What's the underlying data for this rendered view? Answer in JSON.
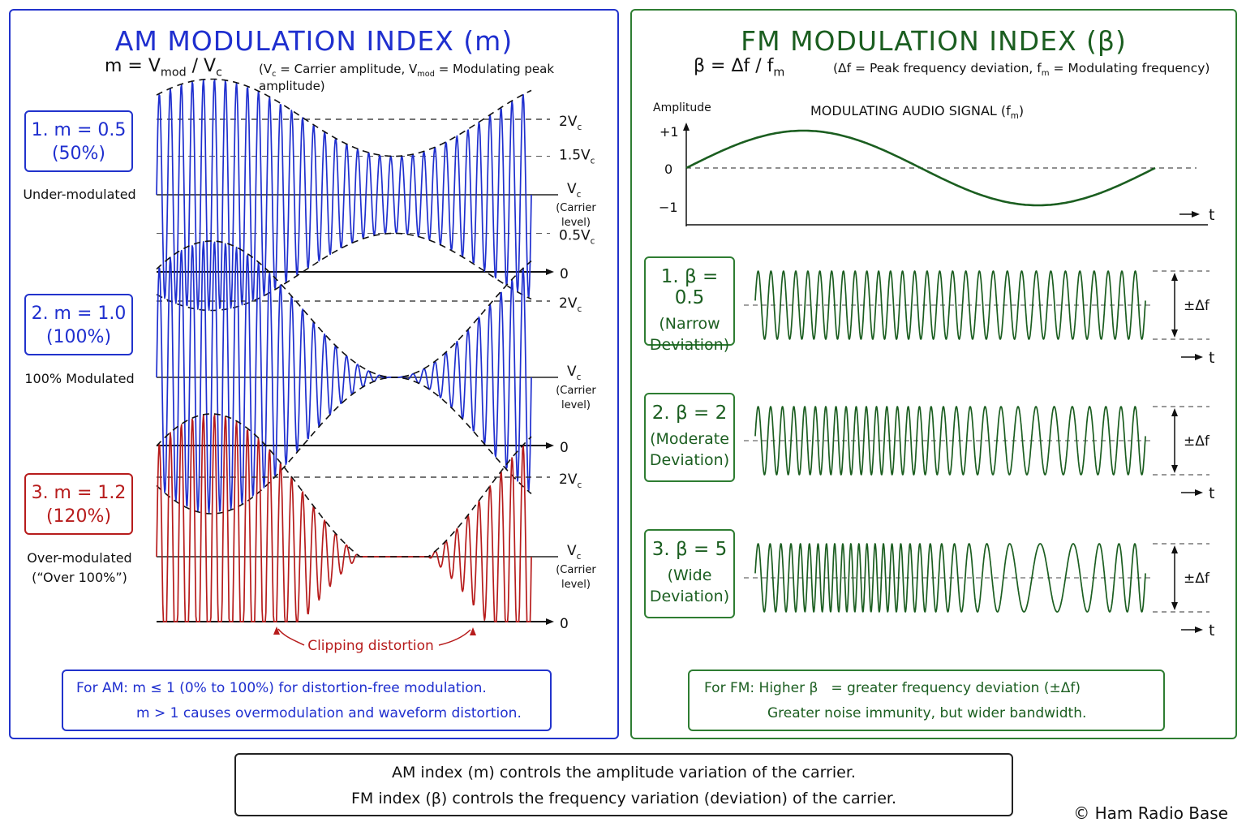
{
  "am": {
    "title": "AM MODULATION INDEX (m)",
    "formula_lhs": "m = V",
    "formula_sub1": "mod",
    "formula_mid": " / V",
    "formula_sub2": "c",
    "formula_note_a": "(V",
    "formula_note_sub1": "c",
    "formula_note_b": " = Carrier amplitude, V",
    "formula_note_sub2": "mod",
    "formula_note_c": " = Modulating peak amplitude)",
    "cases": [
      {
        "line1": "1. m = 0.5",
        "line2": "(50%)",
        "caption1": "Under-modulated",
        "caption2": "",
        "m": 0.5,
        "color": "#1f2fcf"
      },
      {
        "line1": "2. m = 1.0",
        "line2": "(100%)",
        "caption1": "100% Modulated",
        "caption2": "",
        "m": 1.0,
        "color": "#1f2fcf"
      },
      {
        "line1": "3. m = 1.2",
        "line2": "(120%)",
        "caption1": "Over-modulated",
        "caption2": "(“Over 100%”)",
        "m": 1.2,
        "color": "#b71c1c"
      }
    ],
    "labels": {
      "two_vc": "2V",
      "one_half_vc": "1.5V",
      "vc": "V",
      "half_vc": "0.5V",
      "sub_c": "c",
      "carrier_1": "(Carrier",
      "carrier_2": "level)",
      "zero": "0"
    },
    "clipping": "Clipping distortion",
    "note_line1": "For AM: m ≤ 1 (0% to 100%) for distortion-free modulation.",
    "note_line2": "m > 1 causes overmodulation and waveform distortion."
  },
  "fm": {
    "title": "FM MODULATION INDEX (β)",
    "formula_lhs": "β = Δf / f",
    "formula_sub": "m",
    "formula_note_a": "(Δf = Peak frequency deviation, f",
    "formula_note_sub": "m",
    "formula_note_b": " = Modulating frequency)",
    "audio": {
      "amplitude_label": "Amplitude",
      "title": "MODULATING AUDIO SIGNAL (f",
      "title_sub": "m",
      "title_end": ")",
      "plus1": "+1",
      "zero": "0",
      "minus1": "−1",
      "t": "t"
    },
    "cases": [
      {
        "line1": "1. β = 0.5",
        "line2": "(Narrow",
        "line3": "Deviation)",
        "beta": 0.5
      },
      {
        "line1": "2. β = 2",
        "line2": "(Moderate",
        "line3": "Deviation)",
        "beta": 2
      },
      {
        "line1": "3. β = 5",
        "line2": "(Wide",
        "line3": "Deviation)",
        "beta": 5
      }
    ],
    "deviation_label": "±Δf",
    "t_label": "t",
    "note_line1_a": "For FM: Higher β",
    "note_line1_b": "= greater frequency deviation (±Δf)",
    "note_line2": "Greater noise immunity, but wider bandwidth."
  },
  "summary": {
    "line1": "AM index (m) controls the amplitude variation of the carrier.",
    "line2": "FM index (β) controls the frequency variation (deviation) of the carrier."
  },
  "copyright": "© Ham Radio Base",
  "colors": {
    "am_blue": "#1f2fcf",
    "am_red": "#b71c1c",
    "fm_green": "#1b5e20"
  }
}
